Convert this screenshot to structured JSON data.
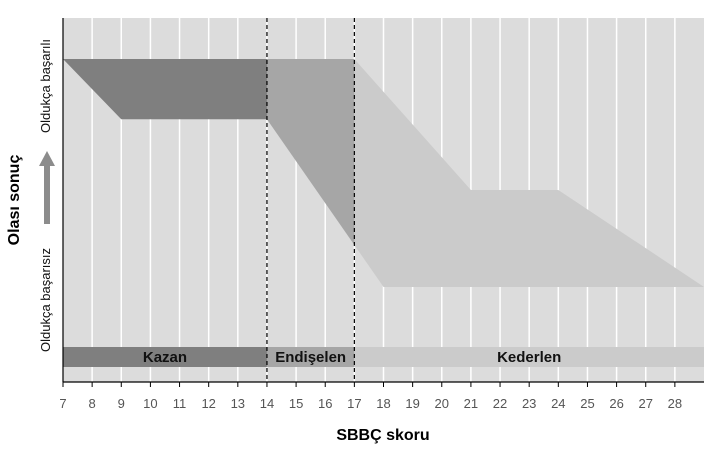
{
  "chart_data": {
    "type": "area",
    "xlabel": "SBBÇ skoru",
    "ylabel": "Olası sonuç",
    "y_high_label": "Oldukça başarılı",
    "y_low_label": "Oldukça başarısız",
    "x_ticks": [
      7,
      8,
      9,
      10,
      11,
      12,
      13,
      14,
      15,
      16,
      17,
      18,
      19,
      20,
      21,
      22,
      23,
      24,
      25,
      26,
      27,
      28
    ],
    "x_range": [
      7,
      29
    ],
    "y_range": [
      0,
      1
    ],
    "thresholds": [
      14,
      17
    ],
    "zones": [
      {
        "label": "Kazan",
        "from": 7,
        "to": 14,
        "color": "#7f7f7f"
      },
      {
        "label": "Endişelen",
        "from": 14,
        "to": 17,
        "color": "#a6a6a6"
      },
      {
        "label": "Kederlen",
        "from": 17,
        "to": 29,
        "color": "#cbcbcb"
      }
    ],
    "series": [
      {
        "color": "#7f7f7f",
        "upper": [
          [
            7,
            1.0
          ],
          [
            14,
            1.0
          ]
        ],
        "lower": [
          [
            7,
            1.0
          ],
          [
            9,
            0.77
          ],
          [
            14,
            0.77
          ]
        ]
      },
      {
        "color": "#a6a6a6",
        "upper": [
          [
            14,
            1.0
          ],
          [
            17,
            1.0
          ]
        ],
        "lower": [
          [
            14,
            0.77
          ],
          [
            17,
            0.29
          ]
        ]
      },
      {
        "color": "#cbcbcb",
        "upper": [
          [
            17,
            1.0
          ],
          [
            21,
            0.5
          ],
          [
            24,
            0.5
          ],
          [
            29,
            0.13
          ]
        ],
        "lower": [
          [
            17,
            0.29
          ],
          [
            18,
            0.13
          ],
          [
            29,
            0.13
          ]
        ]
      }
    ],
    "background": "#dcdcdc",
    "grid": true
  }
}
